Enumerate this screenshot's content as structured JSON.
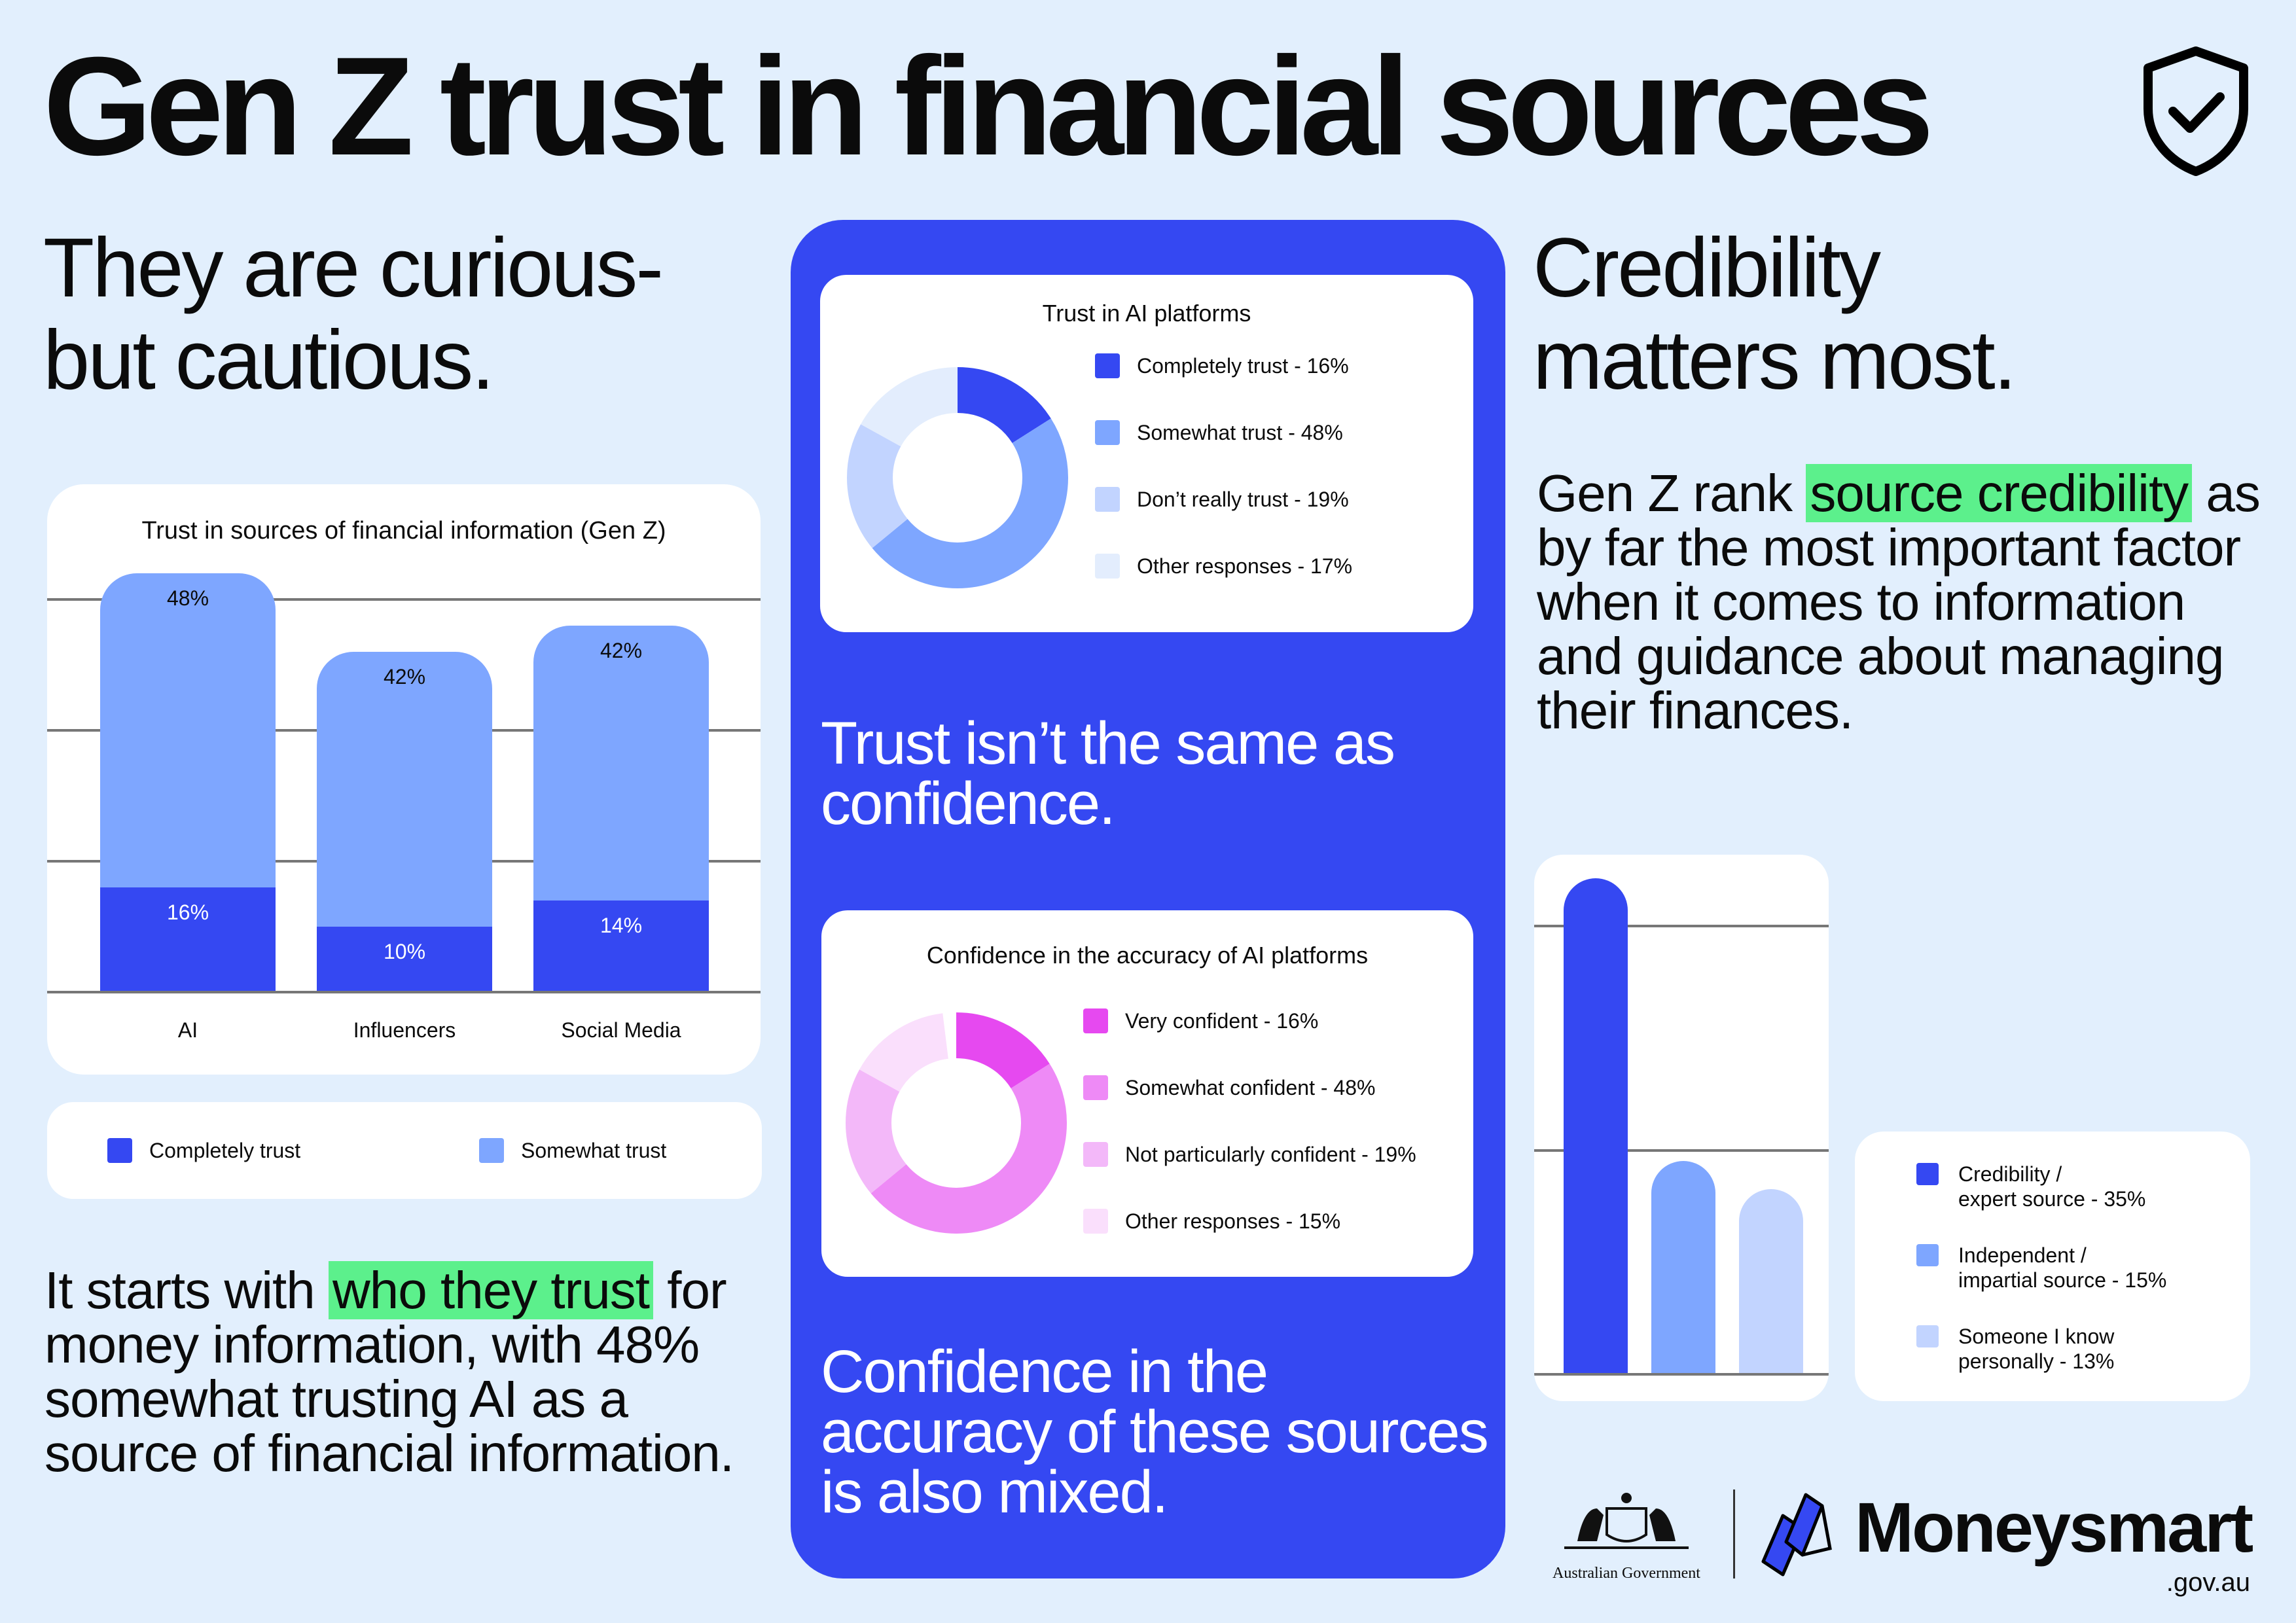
{
  "title": "Gen Z trust in financial sources",
  "icon": "shield-check-icon",
  "colors": {
    "background": "#E2EFFD",
    "blue": "#3548F2",
    "mid": "#7EA6FF",
    "light": "#C2D4FF",
    "pale": "#E3EDFD",
    "highlight": "#5CF08C"
  },
  "left": {
    "heading": [
      "They are curious-",
      "but cautious."
    ],
    "para_pre": "It starts with ",
    "para_hl": "who they trust",
    "para_post": " for money information, with 48% somewhat trusting AI as a source of financial information."
  },
  "center": {
    "statement1": "Trust isn’t the same as confidence.",
    "statement2": "Confidence in the accuracy of these sources is also mixed."
  },
  "right": {
    "heading": [
      "Credibility",
      "matters most."
    ],
    "para_pre": "Gen Z rank ",
    "para_hl": "source credibility",
    "para_post": " as by far the most important factor when it comes to information and guidance about managing their finances."
  },
  "chart_data": [
    {
      "type": "bar",
      "stacked": true,
      "title": "Trust in sources of financial information (Gen Z)",
      "categories": [
        "AI",
        "Influencers",
        "Social Media"
      ],
      "series": [
        {
          "name": "Completely trust",
          "values": [
            16,
            10,
            14
          ],
          "labels": [
            "16%",
            "10%",
            "14%"
          ],
          "color": "#3548F2"
        },
        {
          "name": "Somewhat trust",
          "values": [
            48,
            42,
            42
          ],
          "labels": [
            "48%",
            "42%",
            "42%"
          ],
          "color": "#7EA6FF"
        }
      ],
      "grid": true,
      "ylim": [
        0,
        70
      ],
      "legend": "bottom"
    },
    {
      "type": "pie",
      "donut": true,
      "title": "Trust in AI platforms",
      "slices": [
        {
          "label": "Completely trust - 16%",
          "value": 16,
          "color": "#3548F2"
        },
        {
          "label": "Somewhat trust - 48%",
          "value": 48,
          "color": "#7EA6FF"
        },
        {
          "label": "Don’t really trust - 19%",
          "value": 19,
          "color": "#C2D4FF"
        },
        {
          "label": "Other responses - 17%",
          "value": 17,
          "color": "#E3EDFD"
        }
      ],
      "legend": "right"
    },
    {
      "type": "pie",
      "donut": true,
      "title": "Confidence in the accuracy of AI platforms",
      "slices": [
        {
          "label": "Very confident - 16%",
          "value": 16,
          "color": "#E649F0"
        },
        {
          "label": "Somewhat confident - 48%",
          "value": 48,
          "color": "#EE8AF6"
        },
        {
          "label": "Not particularly confident - 19%",
          "value": 19,
          "color": "#F3B8F9"
        },
        {
          "label": "Other responses - 15%",
          "value": 15,
          "color": "#FADFFC"
        }
      ],
      "legend": "right"
    },
    {
      "type": "bar",
      "categories": [
        "Credibility / expert source",
        "Independent / impartial source",
        "Someone I know personally"
      ],
      "values": [
        35,
        15,
        13
      ],
      "colors": [
        "#3548F2",
        "#7EA6FF",
        "#C2D4FF"
      ],
      "legend_labels": [
        [
          "Credibility /",
          "expert source - 35%"
        ],
        [
          "Independent /",
          "impartial source - 15%"
        ],
        [
          "Someone I know",
          "personally - 13%"
        ]
      ],
      "grid": true,
      "legend": "right"
    }
  ],
  "footer": {
    "gov": "Australian Government",
    "brand": "Moneysmart",
    "domain": ".gov.au"
  }
}
